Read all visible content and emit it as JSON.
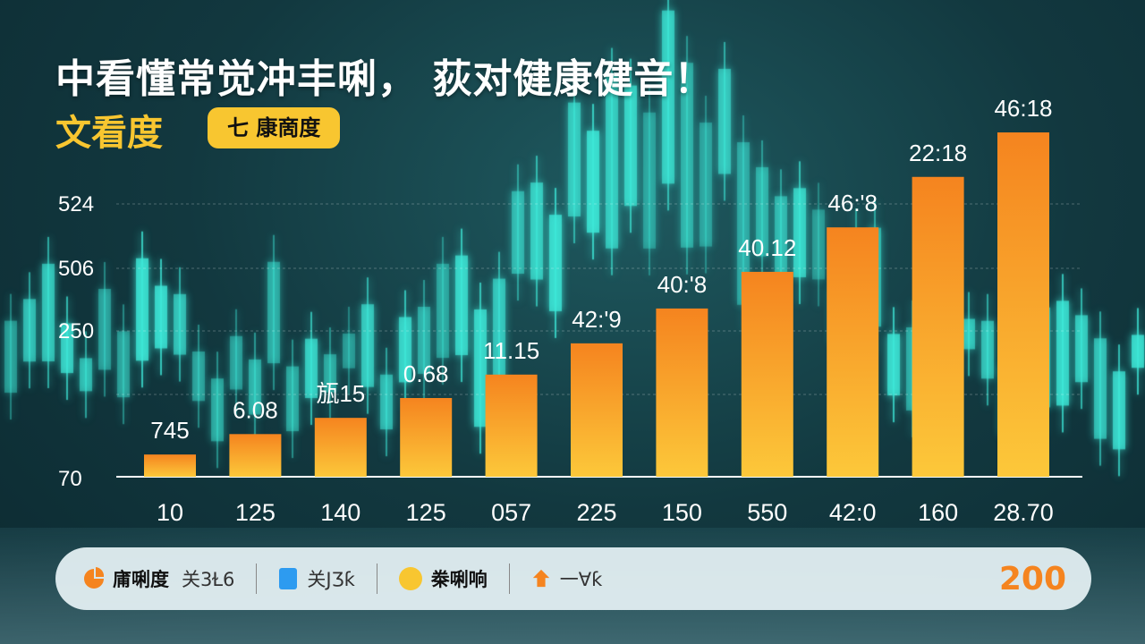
{
  "header": {
    "title": "中看懂常觉冲丰唎， 荻对健康健音！",
    "subtitle": "文看度",
    "badge": "七 康啇度"
  },
  "chart_data": {
    "type": "bar",
    "categories": [
      "10",
      "125",
      "140",
      "125",
      "057",
      "225",
      "150",
      "550",
      "42:0",
      "160",
      "28.70"
    ],
    "values": [
      107,
      141,
      168,
      201,
      240,
      292,
      350,
      411,
      485,
      569,
      643
    ],
    "data_labels": [
      "745",
      "6.08",
      "瓬15",
      "0.68",
      "11.15",
      "42:'9",
      "40:'8",
      "40.12",
      "46:'8",
      "22:18",
      "46:18"
    ],
    "y_tick_labels": [
      "524",
      "506",
      "250",
      "70"
    ],
    "ylim": [
      70,
      660
    ],
    "grid": true,
    "colors": {
      "bar_top": "#f5841f",
      "bar_bottom": "#fcc83a",
      "background": "#12383f",
      "decor": "#3ee8d8"
    }
  },
  "legend": {
    "items": [
      {
        "icon": "pie-icon",
        "color": "#f5841f",
        "label": "庯唎度",
        "sub": "关3Ɫ6"
      },
      {
        "icon": "square-icon",
        "color": "#2d9bf0",
        "label": "",
        "sub": "关JƷƙ"
      },
      {
        "icon": "circle-icon",
        "color": "#f8c630",
        "label": "桊唎响",
        "sub": ""
      },
      {
        "icon": "star-icon",
        "color": "#f5841f",
        "label": "",
        "sub": "一Ɐƙ"
      }
    ],
    "total": "200",
    "placement": "bottom"
  }
}
